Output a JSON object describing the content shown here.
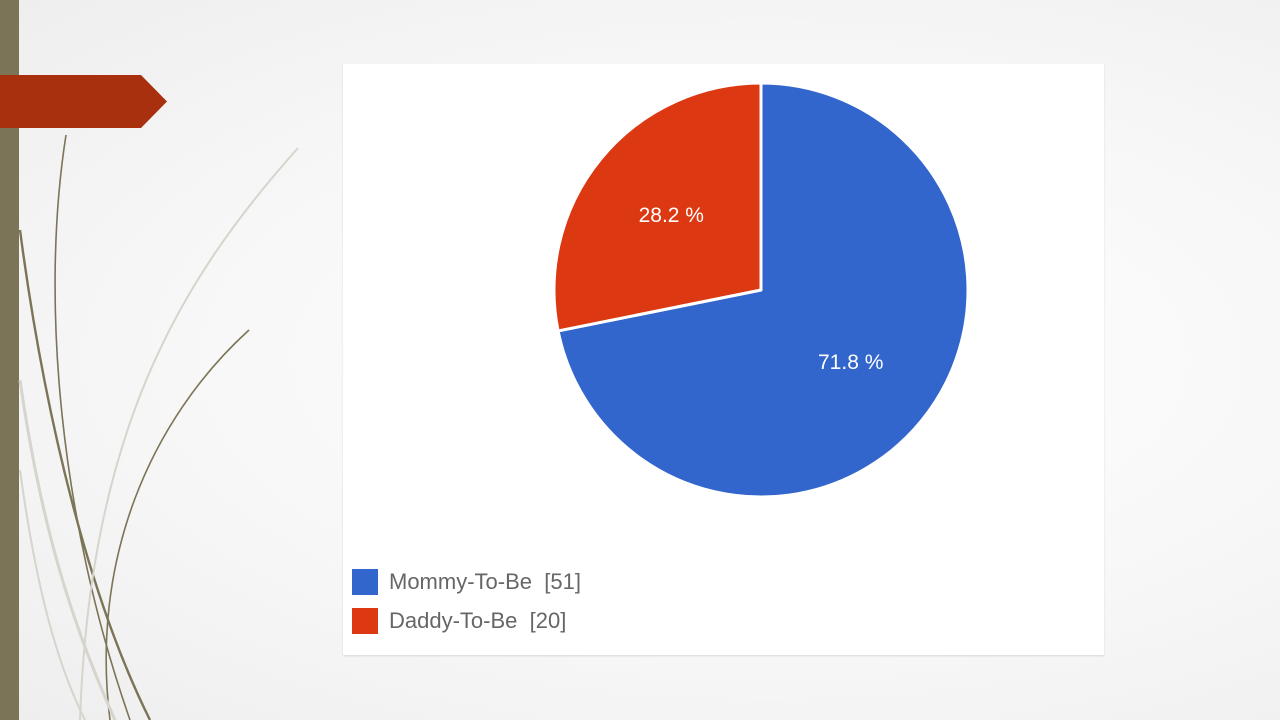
{
  "theme": {
    "bar_color": "#7b7456",
    "accent_color": "#a8300f",
    "curve_color": "#7b7456",
    "curve_light_color": "#d6d4cc"
  },
  "chart_data": {
    "type": "pie",
    "title": "",
    "slices": [
      {
        "label": "Mommy-To-Be",
        "value": 51,
        "percent_label": "71.8 %",
        "color": "#3366cc"
      },
      {
        "label": "Daddy-To-Be",
        "value": 20,
        "percent_label": "28.2 %",
        "color": "#dc3912"
      }
    ],
    "legend": {
      "position": "bottom-left",
      "entries": [
        "Mommy-To-Be  [51]",
        "Daddy-To-Be  [20]"
      ]
    }
  }
}
